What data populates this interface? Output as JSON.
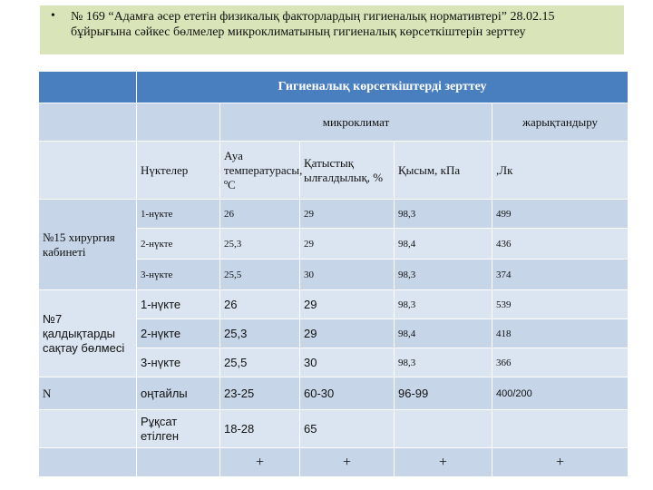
{
  "title": {
    "bullet": "•",
    "text": "№ 169 “Адамға әсер ететін физикалық факторлардың гигиеналық нормативтері” 28.02.15 бұйрығына сәйкес бөлмелер микроклиматының гигиеналық көрсеткіштерін зерттеу"
  },
  "table": {
    "header_main": "Гигиеналық көрсеткіштерді зерттеу",
    "group_micro": "микроклимат",
    "group_light": "жарықтандыру",
    "columns": {
      "points": "Нүктелер",
      "temperature": "Ауа температурасы, ºС",
      "humidity": "Қатыстық ылғалдылық, %",
      "pressure": "Қысым, кПа",
      "lux": ",Лк"
    },
    "room1": {
      "name": "№15 хирургия кабинеті",
      "rows": [
        {
          "point": "1-нүкте",
          "temp": "26",
          "hum": "29",
          "press": "98,3",
          "lux": "499"
        },
        {
          "point": "2-нүкте",
          "temp": "25,3",
          "hum": "29",
          "press": "98,4",
          "lux": "436"
        },
        {
          "point": "3-нүкте",
          "temp": "25,5",
          "hum": "30",
          "press": "98,3",
          "lux": "374"
        }
      ]
    },
    "room2": {
      "name": "№7 қалдықтарды сақтау бөлмесі",
      "rows": [
        {
          "point": "1-нүкте",
          "temp": "26",
          "hum": "29",
          "press": "98,3",
          "lux": "539"
        },
        {
          "point": "2-нүкте",
          "temp": "25,3",
          "hum": "29",
          "press": "98,4",
          "lux": "418"
        },
        {
          "point": "3-нүкте",
          "temp": "25,5",
          "hum": "30",
          "press": "98,3",
          "lux": "366"
        }
      ]
    },
    "norm": {
      "label": "N",
      "optimal_label": "оңтайлы",
      "optimal": {
        "temp": "23-25",
        "hum": "60-30",
        "press": "96-99",
        "lux": "400/200"
      },
      "allowed_label": "Рұқсат етілген",
      "allowed": {
        "temp": "18-28",
        "hum": "65"
      }
    },
    "marks": {
      "temp": "+",
      "hum": "+",
      "press": "+",
      "lux": "+"
    }
  }
}
